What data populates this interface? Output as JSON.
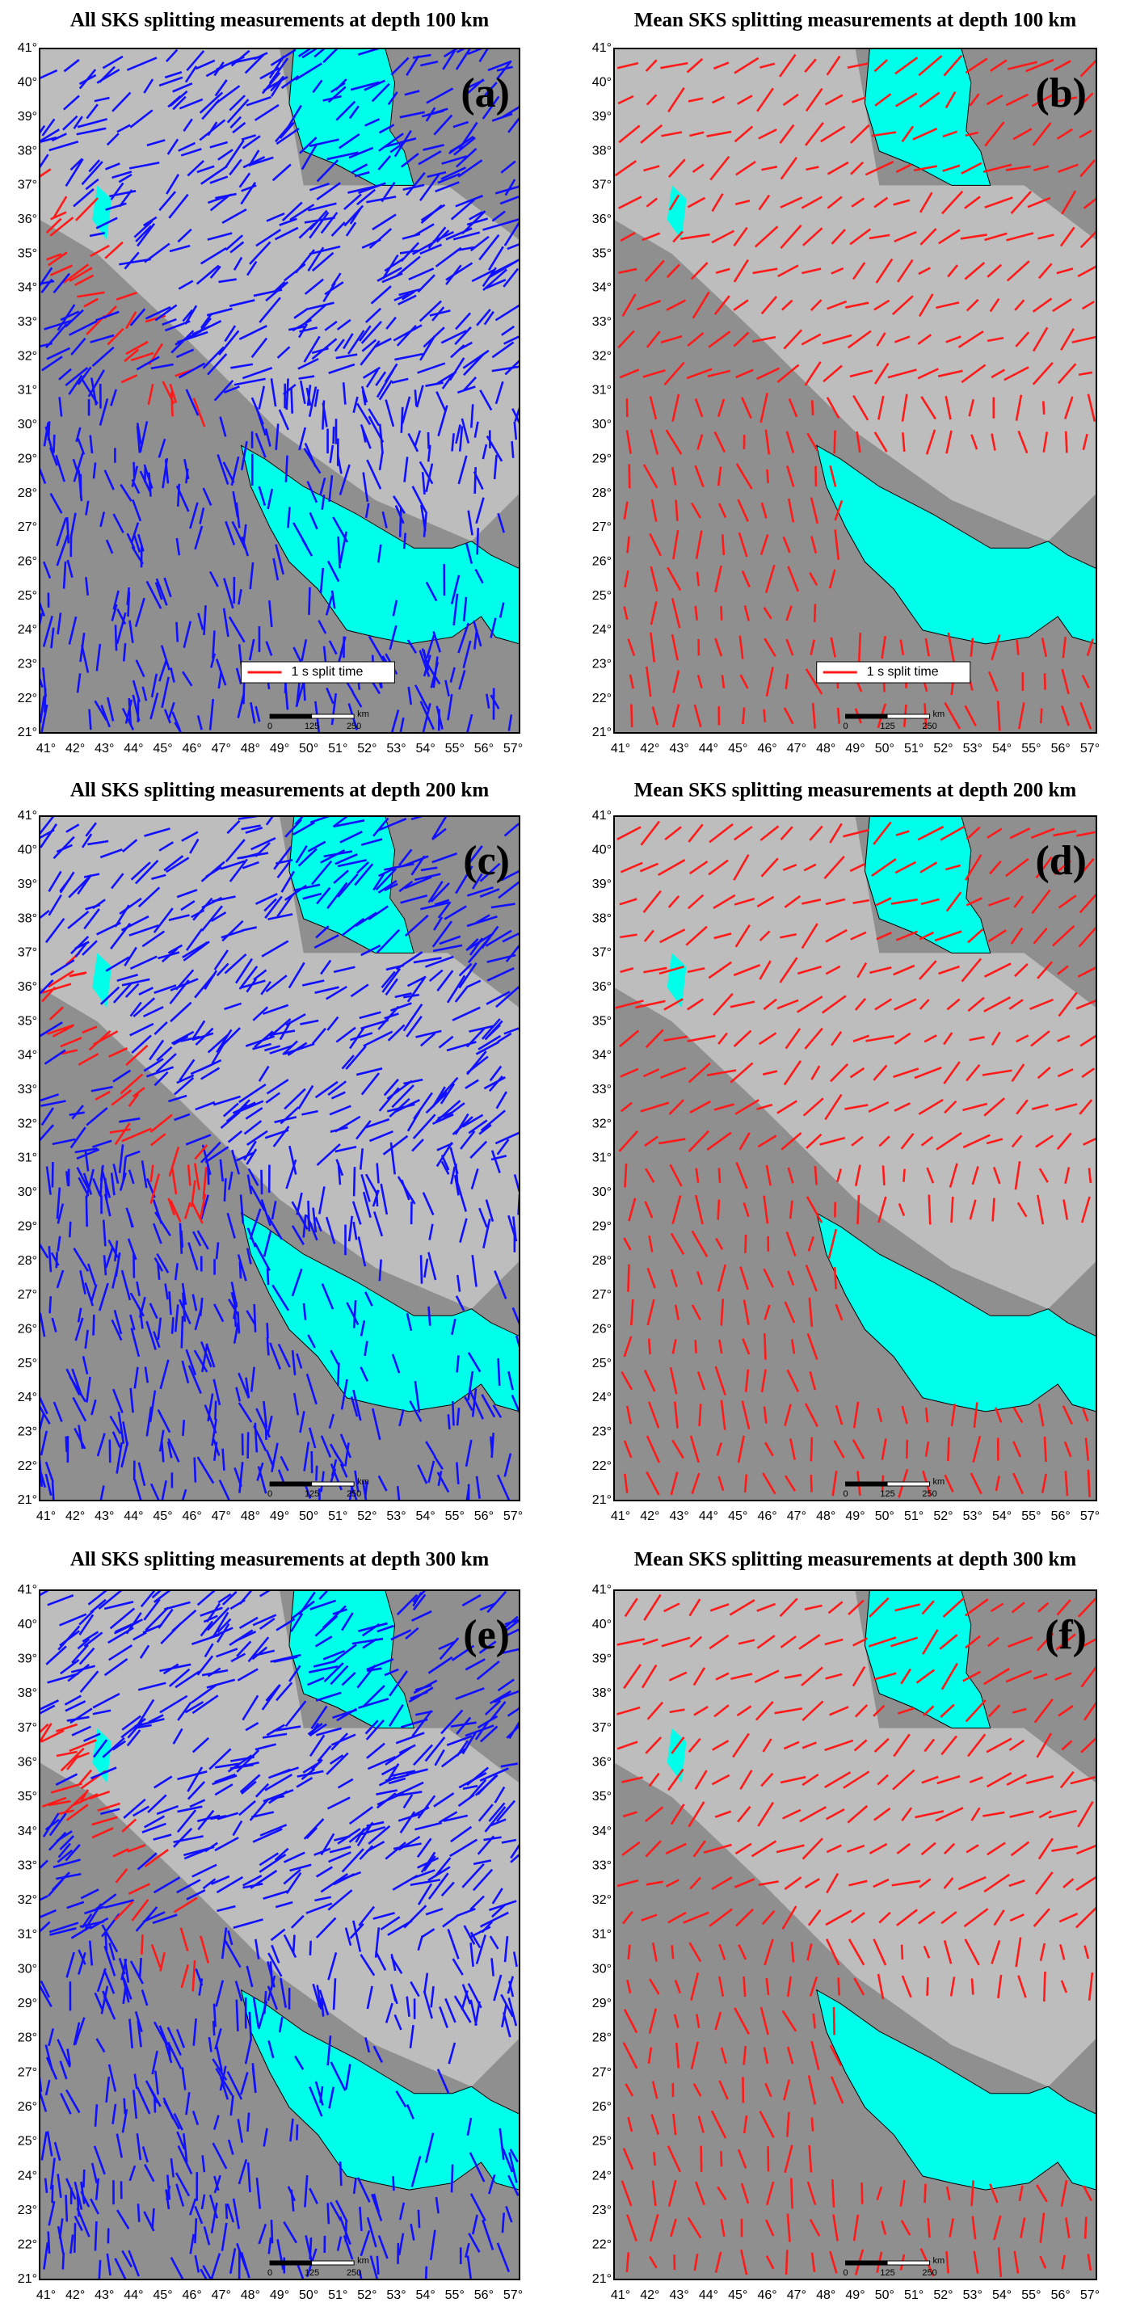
{
  "panels": [
    {
      "title": "All SKS splitting measurements at depth 100 km",
      "label": "(a)",
      "legend": "1 s split time"
    },
    {
      "title": "Mean SKS splitting measurements at depth 100 km",
      "label": "(b)",
      "legend": "1 s split time"
    },
    {
      "title": "All SKS splitting measurements at depth 200 km",
      "label": "(c)"
    },
    {
      "title": "Mean SKS splitting measurements at depth 200 km",
      "label": "(d)"
    },
    {
      "title": "All SKS splitting measurements at depth 300 km",
      "label": "(e)"
    },
    {
      "title": "Mean SKS splitting measurements at depth 300 km",
      "label": "(f)"
    }
  ],
  "lat_ticks": [
    "21°",
    "22°",
    "23°",
    "24°",
    "25°",
    "26°",
    "27°",
    "28°",
    "29°",
    "30°",
    "31°",
    "32°",
    "33°",
    "34°",
    "35°",
    "36°",
    "37°",
    "38°",
    "39°",
    "40°",
    "41°"
  ],
  "lon_ticks": [
    "41°",
    "42°",
    "43°",
    "44°",
    "45°",
    "46°",
    "47°",
    "48°",
    "49°",
    "50°",
    "51°",
    "52°",
    "53°",
    "54°",
    "55°",
    "56°",
    "57°"
  ],
  "scale_bar": {
    "labels": [
      "0",
      "125",
      "250"
    ],
    "unit": "km"
  }
}
